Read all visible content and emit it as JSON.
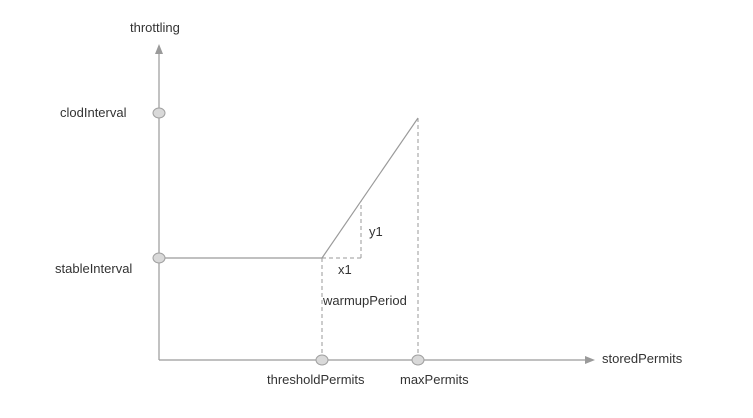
{
  "diagram": {
    "y_axis_label": "throttling",
    "x_axis_label": "storedPermits",
    "y_ticks": [
      "clodInterval",
      "stableInterval"
    ],
    "x_ticks": [
      "thresholdPermits",
      "maxPermits"
    ],
    "slope_x_label": "x1",
    "slope_y_label": "y1",
    "warmup_label": "warmupPeriod"
  }
}
